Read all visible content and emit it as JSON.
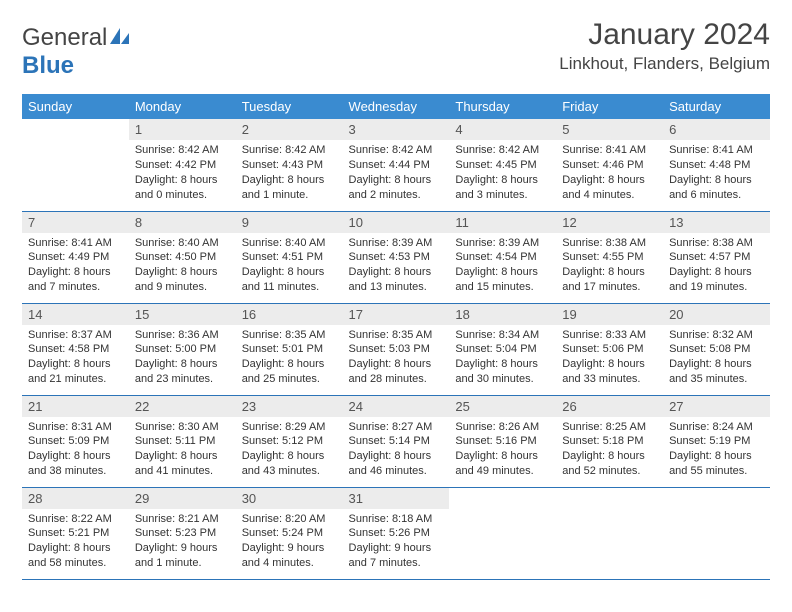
{
  "brand": {
    "line1": "General",
    "line2": "Blue",
    "icon_color": "#2c74b8"
  },
  "title": "January 2024",
  "location": "Linkhout, Flanders, Belgium",
  "colors": {
    "header_bg": "#3a8bd0",
    "header_text": "#ffffff",
    "border": "#2c74b8",
    "daynum_bg": "#ececec",
    "text": "#333333"
  },
  "weekdays": [
    "Sunday",
    "Monday",
    "Tuesday",
    "Wednesday",
    "Thursday",
    "Friday",
    "Saturday"
  ],
  "start_offset": 1,
  "days": [
    {
      "n": 1,
      "sr": "8:42 AM",
      "ss": "4:42 PM",
      "dl": "8 hours and 0 minutes."
    },
    {
      "n": 2,
      "sr": "8:42 AM",
      "ss": "4:43 PM",
      "dl": "8 hours and 1 minute."
    },
    {
      "n": 3,
      "sr": "8:42 AM",
      "ss": "4:44 PM",
      "dl": "8 hours and 2 minutes."
    },
    {
      "n": 4,
      "sr": "8:42 AM",
      "ss": "4:45 PM",
      "dl": "8 hours and 3 minutes."
    },
    {
      "n": 5,
      "sr": "8:41 AM",
      "ss": "4:46 PM",
      "dl": "8 hours and 4 minutes."
    },
    {
      "n": 6,
      "sr": "8:41 AM",
      "ss": "4:48 PM",
      "dl": "8 hours and 6 minutes."
    },
    {
      "n": 7,
      "sr": "8:41 AM",
      "ss": "4:49 PM",
      "dl": "8 hours and 7 minutes."
    },
    {
      "n": 8,
      "sr": "8:40 AM",
      "ss": "4:50 PM",
      "dl": "8 hours and 9 minutes."
    },
    {
      "n": 9,
      "sr": "8:40 AM",
      "ss": "4:51 PM",
      "dl": "8 hours and 11 minutes."
    },
    {
      "n": 10,
      "sr": "8:39 AM",
      "ss": "4:53 PM",
      "dl": "8 hours and 13 minutes."
    },
    {
      "n": 11,
      "sr": "8:39 AM",
      "ss": "4:54 PM",
      "dl": "8 hours and 15 minutes."
    },
    {
      "n": 12,
      "sr": "8:38 AM",
      "ss": "4:55 PM",
      "dl": "8 hours and 17 minutes."
    },
    {
      "n": 13,
      "sr": "8:38 AM",
      "ss": "4:57 PM",
      "dl": "8 hours and 19 minutes."
    },
    {
      "n": 14,
      "sr": "8:37 AM",
      "ss": "4:58 PM",
      "dl": "8 hours and 21 minutes."
    },
    {
      "n": 15,
      "sr": "8:36 AM",
      "ss": "5:00 PM",
      "dl": "8 hours and 23 minutes."
    },
    {
      "n": 16,
      "sr": "8:35 AM",
      "ss": "5:01 PM",
      "dl": "8 hours and 25 minutes."
    },
    {
      "n": 17,
      "sr": "8:35 AM",
      "ss": "5:03 PM",
      "dl": "8 hours and 28 minutes."
    },
    {
      "n": 18,
      "sr": "8:34 AM",
      "ss": "5:04 PM",
      "dl": "8 hours and 30 minutes."
    },
    {
      "n": 19,
      "sr": "8:33 AM",
      "ss": "5:06 PM",
      "dl": "8 hours and 33 minutes."
    },
    {
      "n": 20,
      "sr": "8:32 AM",
      "ss": "5:08 PM",
      "dl": "8 hours and 35 minutes."
    },
    {
      "n": 21,
      "sr": "8:31 AM",
      "ss": "5:09 PM",
      "dl": "8 hours and 38 minutes."
    },
    {
      "n": 22,
      "sr": "8:30 AM",
      "ss": "5:11 PM",
      "dl": "8 hours and 41 minutes."
    },
    {
      "n": 23,
      "sr": "8:29 AM",
      "ss": "5:12 PM",
      "dl": "8 hours and 43 minutes."
    },
    {
      "n": 24,
      "sr": "8:27 AM",
      "ss": "5:14 PM",
      "dl": "8 hours and 46 minutes."
    },
    {
      "n": 25,
      "sr": "8:26 AM",
      "ss": "5:16 PM",
      "dl": "8 hours and 49 minutes."
    },
    {
      "n": 26,
      "sr": "8:25 AM",
      "ss": "5:18 PM",
      "dl": "8 hours and 52 minutes."
    },
    {
      "n": 27,
      "sr": "8:24 AM",
      "ss": "5:19 PM",
      "dl": "8 hours and 55 minutes."
    },
    {
      "n": 28,
      "sr": "8:22 AM",
      "ss": "5:21 PM",
      "dl": "8 hours and 58 minutes."
    },
    {
      "n": 29,
      "sr": "8:21 AM",
      "ss": "5:23 PM",
      "dl": "9 hours and 1 minute."
    },
    {
      "n": 30,
      "sr": "8:20 AM",
      "ss": "5:24 PM",
      "dl": "9 hours and 4 minutes."
    },
    {
      "n": 31,
      "sr": "8:18 AM",
      "ss": "5:26 PM",
      "dl": "9 hours and 7 minutes."
    }
  ],
  "labels": {
    "sunrise": "Sunrise:",
    "sunset": "Sunset:",
    "daylight": "Daylight:"
  }
}
